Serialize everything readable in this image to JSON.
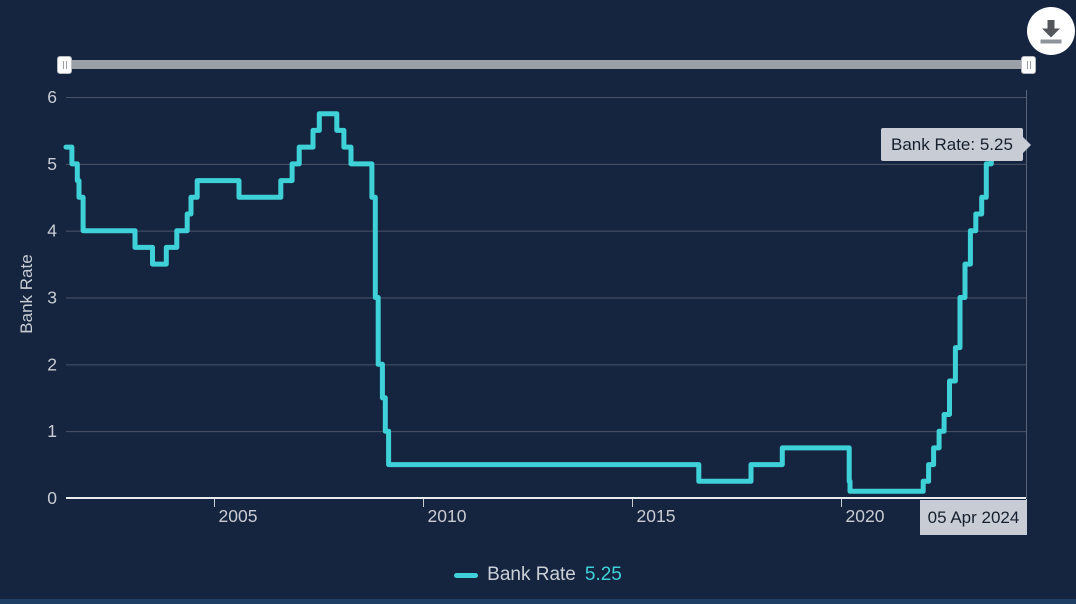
{
  "chart_data": {
    "type": "line",
    "step": true,
    "series": [
      {
        "name": "Bank Rate",
        "color": "#3ED2D8",
        "points": [
          [
            2001.45,
            5.25
          ],
          [
            2001.59,
            5.0
          ],
          [
            2001.72,
            4.75
          ],
          [
            2001.76,
            4.5
          ],
          [
            2001.86,
            4.0
          ],
          [
            2003.1,
            3.75
          ],
          [
            2003.52,
            3.5
          ],
          [
            2003.85,
            3.75
          ],
          [
            2004.1,
            4.0
          ],
          [
            2004.35,
            4.25
          ],
          [
            2004.44,
            4.5
          ],
          [
            2004.59,
            4.75
          ],
          [
            2005.59,
            4.5
          ],
          [
            2006.59,
            4.75
          ],
          [
            2006.86,
            5.0
          ],
          [
            2007.03,
            5.25
          ],
          [
            2007.36,
            5.5
          ],
          [
            2007.51,
            5.75
          ],
          [
            2007.93,
            5.5
          ],
          [
            2008.1,
            5.25
          ],
          [
            2008.27,
            5.0
          ],
          [
            2008.77,
            4.5
          ],
          [
            2008.85,
            3.0
          ],
          [
            2008.92,
            2.0
          ],
          [
            2009.02,
            1.5
          ],
          [
            2009.09,
            1.0
          ],
          [
            2009.17,
            0.5
          ],
          [
            2016.59,
            0.25
          ],
          [
            2017.84,
            0.5
          ],
          [
            2018.59,
            0.75
          ],
          [
            2020.19,
            0.25
          ],
          [
            2020.21,
            0.1
          ],
          [
            2021.96,
            0.25
          ],
          [
            2022.09,
            0.5
          ],
          [
            2022.21,
            0.75
          ],
          [
            2022.34,
            1.0
          ],
          [
            2022.46,
            1.25
          ],
          [
            2022.59,
            1.75
          ],
          [
            2022.73,
            2.25
          ],
          [
            2022.84,
            3.0
          ],
          [
            2022.96,
            3.5
          ],
          [
            2023.09,
            4.0
          ],
          [
            2023.22,
            4.25
          ],
          [
            2023.36,
            4.5
          ],
          [
            2023.47,
            5.0
          ],
          [
            2023.59,
            5.25
          ],
          [
            2024.26,
            5.25
          ]
        ]
      }
    ],
    "ylabel": "Bank Rate",
    "xlabel": "",
    "xlim": [
      2001.45,
      2024.42
    ],
    "ylim": [
      0,
      6
    ],
    "yticks": [
      0,
      1,
      2,
      3,
      4,
      5,
      6
    ],
    "xticks": [
      2005,
      2010,
      2015,
      2020
    ],
    "grid": "horizontal",
    "legend_position": "bottom-center"
  },
  "colors": {
    "background": "#152540",
    "line": "#3ED2D8",
    "grid": "#4A5468",
    "plot_border": "#5A6275",
    "axis_line": "#E9EBEE",
    "tick_label": "#C9CDD3",
    "tooltip_bg": "#C8CDD5",
    "tooltip_text": "#16202E",
    "slider_track": "#9BA0A7"
  },
  "tooltip": {
    "text": "Bank Rate: 5.25"
  },
  "date_label": {
    "text": "05 Apr 2024"
  },
  "legend": {
    "label": "Bank Rate",
    "value": "5.25"
  },
  "toolbar": {
    "download_icon": "download-arrow"
  }
}
